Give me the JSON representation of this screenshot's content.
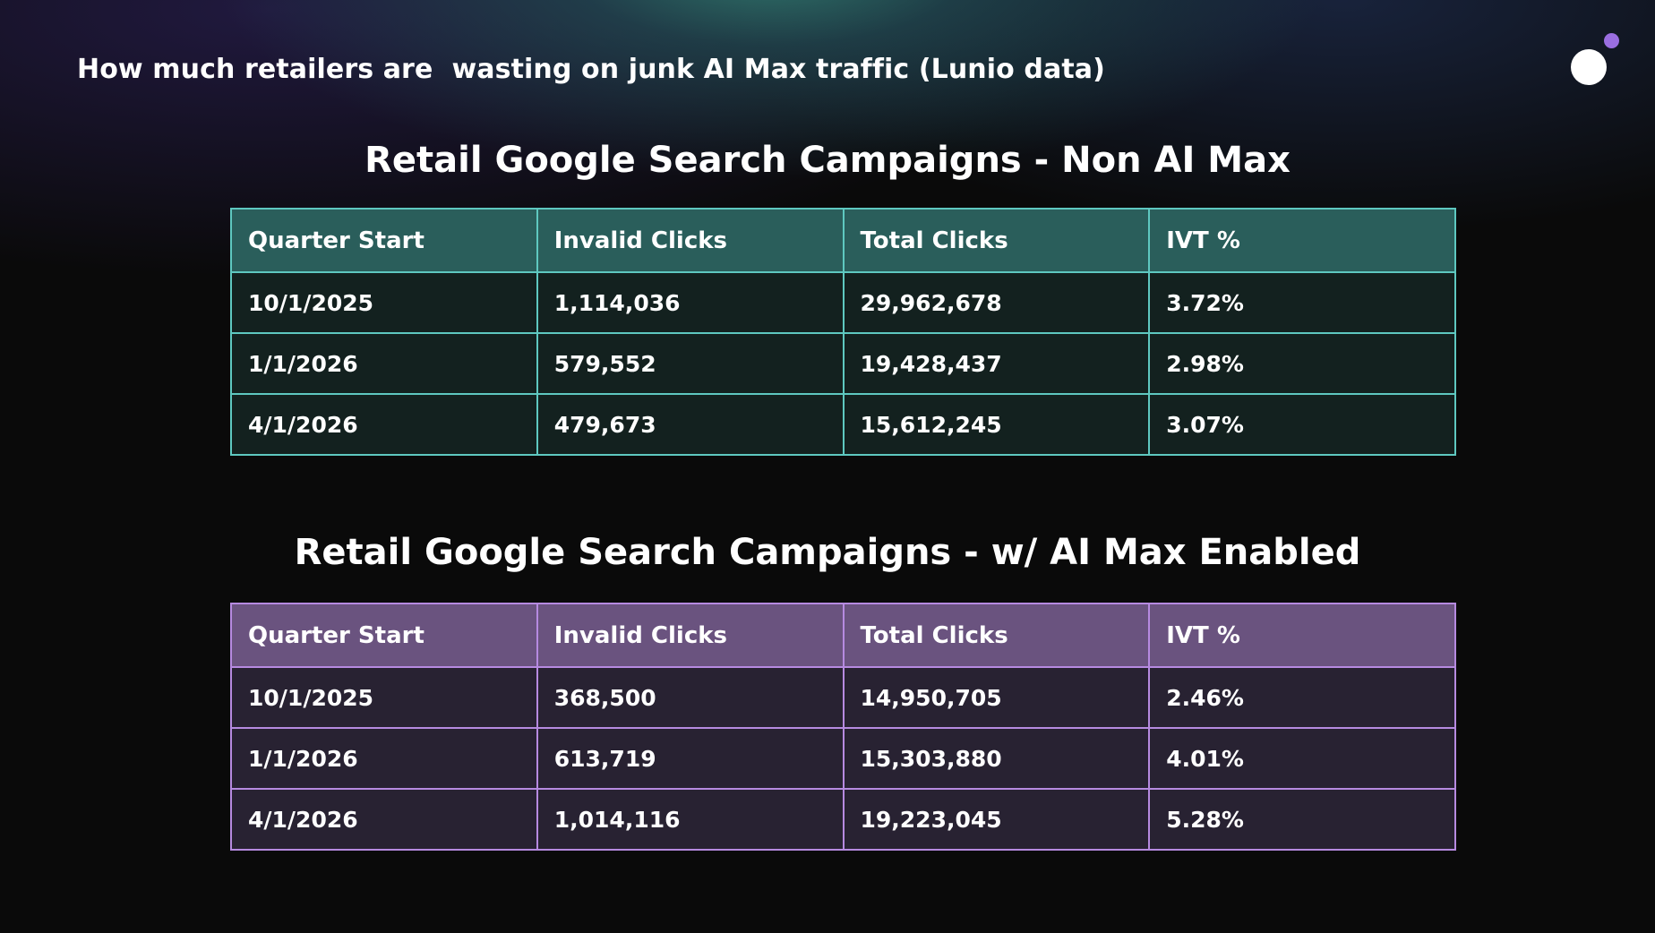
{
  "headline": "How much retailers are  wasting on junk AI Max traffic (Lunio data)",
  "tables": [
    {
      "title": "Retail Google Search Campaigns - Non AI Max",
      "headers": [
        "Quarter Start",
        "Invalid Clicks",
        "Total Clicks",
        "IVT %"
      ],
      "rows": [
        [
          "10/1/2025",
          "1,114,036",
          "29,962,678",
          "3.72%"
        ],
        [
          "1/1/2026",
          "579,552",
          "19,428,437",
          "2.98%"
        ],
        [
          "4/1/2026",
          "479,673",
          "15,612,245",
          "3.07%"
        ]
      ],
      "accent": "#5ec8c0"
    },
    {
      "title": "Retail Google Search Campaigns - w/ AI Max Enabled",
      "headers": [
        "Quarter Start",
        "Invalid Clicks",
        "Total Clicks",
        "IVT %"
      ],
      "rows": [
        [
          "10/1/2025",
          "368,500",
          "14,950,705",
          "2.46%"
        ],
        [
          "1/1/2026",
          "613,719",
          "15,303,880",
          "4.01%"
        ],
        [
          "4/1/2026",
          "1,014,116",
          "19,223,045",
          "5.28%"
        ]
      ],
      "accent": "#b68ae0"
    }
  ],
  "logo_icon": "circle-dot-logo-icon",
  "colors": {
    "logo_dot": "#9a6ee0"
  }
}
